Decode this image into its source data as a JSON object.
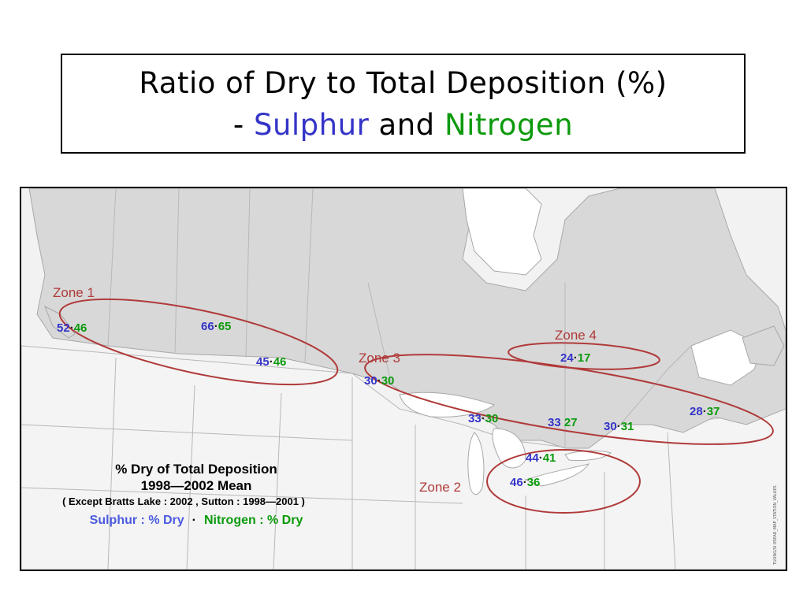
{
  "title": {
    "line1": "Ratio of Dry to Total Deposition (%)",
    "line2_prefix": "- ",
    "line2_sulphur": "Sulphur",
    "line2_and": " and ",
    "line2_nitrogen": "Nitrogen"
  },
  "colors": {
    "sulphur": "#3434c8",
    "nitrogen": "#0c9a0c",
    "zone": "#b03a3a",
    "land_canada": "#d9d9d9",
    "land_us": "#f2f2f2",
    "water": "#ffffff"
  },
  "zones": [
    {
      "label": "Zone 1"
    },
    {
      "label": "Zone 2"
    },
    {
      "label": "Zone 3"
    },
    {
      "label": "Zone 4"
    }
  ],
  "stations": [
    {
      "sulphur": "52",
      "sep": "·",
      "nitrogen": "46"
    },
    {
      "sulphur": "66",
      "sep": "·",
      "nitrogen": "65"
    },
    {
      "sulphur": "45",
      "sep": "·",
      "nitrogen": "46"
    },
    {
      "sulphur": "24",
      "sep": "·",
      "nitrogen": "17"
    },
    {
      "sulphur": "30",
      "sep": "·",
      "nitrogen": "30"
    },
    {
      "sulphur": "33",
      "sep": "·",
      "nitrogen": "30"
    },
    {
      "sulphur": "33",
      "sep": " ",
      "nitrogen": "27"
    },
    {
      "sulphur": "30",
      "sep": "·",
      "nitrogen": "31"
    },
    {
      "sulphur": "28",
      "sep": "·",
      "nitrogen": "37"
    },
    {
      "sulphur": "44",
      "sep": "·",
      "nitrogen": "41"
    },
    {
      "sulphur": "46",
      "sep": "·",
      "nitrogen": "36"
    }
  ],
  "legend": {
    "line1": "% Dry of Total Deposition",
    "line2": "1998—2002  Mean",
    "line3": "( Except Bratts Lake : 2002 , Sutton : 1998—2001 )",
    "sulphur_label": "Sulphur : % Dry",
    "dot": "·",
    "nitrogen_label": "Nitrogen : % Dry"
  },
  "credit": "TUUNG/SI  05EAR_MAP_STATION_VALUES"
}
